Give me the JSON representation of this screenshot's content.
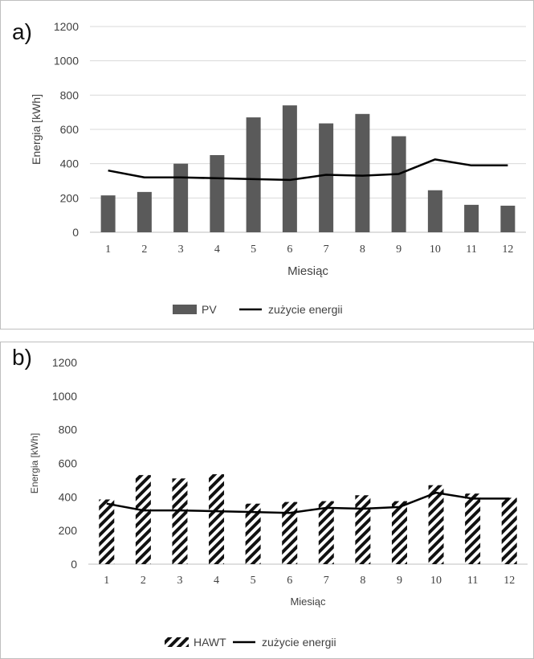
{
  "colors": {
    "bar": "#5a5a5a",
    "line": "#000000",
    "grid": "#d9d9d9",
    "axis": "#bfbfbf",
    "text": "#404040",
    "hatch": "#111111"
  },
  "chart_data": [
    {
      "panel": "a)",
      "type": "bar",
      "xlabel": "Miesiąc",
      "ylabel": "Energia [kWh]",
      "ylim": [
        0,
        1200
      ],
      "yticks": [
        "0",
        "200",
        "400",
        "600",
        "800",
        "1000",
        "1200"
      ],
      "categories": [
        "1",
        "2",
        "3",
        "4",
        "5",
        "6",
        "7",
        "8",
        "9",
        "10",
        "11",
        "12"
      ],
      "grid": true,
      "legend_position": "bottom",
      "series": [
        {
          "name": "PV",
          "type": "bar",
          "pattern": "solid",
          "values": [
            215,
            235,
            400,
            450,
            670,
            740,
            635,
            690,
            560,
            245,
            160,
            155
          ]
        },
        {
          "name": "zużycie energii",
          "type": "line",
          "values": [
            360,
            320,
            320,
            315,
            310,
            305,
            335,
            330,
            340,
            425,
            390,
            390
          ]
        }
      ]
    },
    {
      "panel": "b)",
      "type": "bar",
      "xlabel": "Miesiąc",
      "ylabel": "Energia [kWh]",
      "ylim": [
        0,
        1200
      ],
      "yticks": [
        "0",
        "200",
        "400",
        "600",
        "800",
        "1000",
        "1200"
      ],
      "categories": [
        "1",
        "2",
        "3",
        "4",
        "5",
        "6",
        "7",
        "8",
        "9",
        "10",
        "11",
        "12"
      ],
      "grid": false,
      "legend_position": "bottom",
      "series": [
        {
          "name": "HAWT",
          "type": "bar",
          "pattern": "hatched",
          "values": [
            385,
            530,
            510,
            535,
            360,
            370,
            375,
            410,
            375,
            470,
            420,
            395
          ]
        },
        {
          "name": "zużycie energii",
          "type": "line",
          "values": [
            360,
            320,
            320,
            315,
            310,
            305,
            335,
            330,
            340,
            425,
            390,
            390
          ]
        }
      ]
    }
  ]
}
